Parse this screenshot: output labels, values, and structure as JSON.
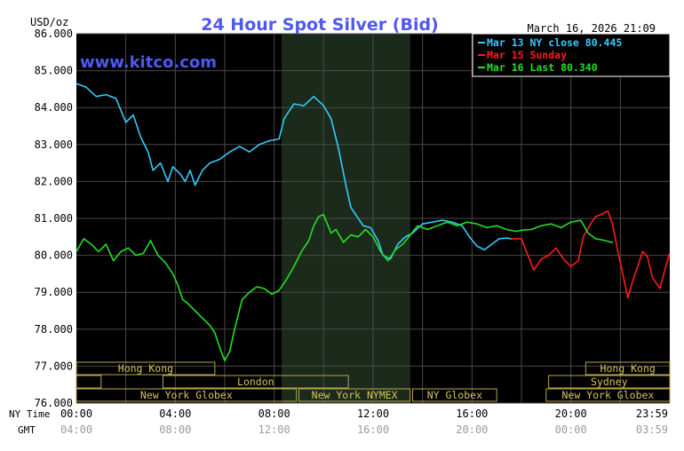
{
  "chart_data": {
    "type": "line",
    "title": "24 Hour Spot Silver (Bid)",
    "timestamp": "March 16, 2026 21:09",
    "watermark": "www.kitco.com",
    "ylabel": "USD/oz",
    "ylim": [
      76000,
      86000
    ],
    "y_ticks": [
      "86.000",
      "85.000",
      "84.000",
      "83.000",
      "82.000",
      "81.000",
      "80.000",
      "79.000",
      "78.000",
      "77.000",
      "76.000"
    ],
    "x_axis": {
      "ny_label": "NY Time",
      "gmt_label": "GMT",
      "ny_ticks": [
        "00:00",
        "04:00",
        "08:00",
        "12:00",
        "16:00",
        "20:00",
        "23:59"
      ],
      "gmt_ticks": [
        "04:00",
        "08:00",
        "12:00",
        "16:00",
        "20:00",
        "00:00",
        "03:59"
      ]
    },
    "legend_position": "top-right",
    "legend": [
      {
        "label": "Mar 13 NY close 80.445",
        "color": "#33ccff"
      },
      {
        "label": "Mar 15 Sunday",
        "color": "#ff1a1a"
      },
      {
        "label": "Mar 16 Last 80.340",
        "color": "#22e022"
      }
    ],
    "shaded_region_hours": [
      8.3,
      13.5
    ],
    "sessions": [
      {
        "label": "Hong Kong",
        "row": 0,
        "start": 0.0,
        "end": 5.6
      },
      {
        "label": "Hong Kong",
        "row": 0,
        "start": 20.6,
        "end": 24.0
      },
      {
        "label": "London",
        "row": 1,
        "start": 3.5,
        "end": 11.0
      },
      {
        "label": "Sydney",
        "row": 1,
        "start": 19.1,
        "end": 24.0
      },
      {
        "label": "New York Globex",
        "row": 2,
        "start": 0.0,
        "end": 8.9
      },
      {
        "label": "New York NYMEX",
        "row": 2,
        "start": 9.0,
        "end": 13.5
      },
      {
        "label": "NY Globex",
        "row": 2,
        "start": 13.6,
        "end": 17.0
      },
      {
        "label": "New York Globex",
        "row": 2,
        "start": 19.0,
        "end": 24.0
      }
    ],
    "session_open_stubs": [
      {
        "row": 1,
        "start": 0.0,
        "end": 1.0
      }
    ],
    "series": [
      {
        "name": "Mar 13 NY close 80.445",
        "color": "#33ccff",
        "points": [
          [
            0.0,
            84.65
          ],
          [
            0.4,
            84.55
          ],
          [
            0.8,
            84.3
          ],
          [
            1.2,
            84.35
          ],
          [
            1.6,
            84.25
          ],
          [
            2.0,
            83.6
          ],
          [
            2.3,
            83.8
          ],
          [
            2.6,
            83.2
          ],
          [
            2.9,
            82.8
          ],
          [
            3.1,
            82.3
          ],
          [
            3.4,
            82.5
          ],
          [
            3.7,
            82.0
          ],
          [
            3.9,
            82.4
          ],
          [
            4.2,
            82.2
          ],
          [
            4.4,
            82.0
          ],
          [
            4.6,
            82.3
          ],
          [
            4.8,
            81.9
          ],
          [
            5.1,
            82.3
          ],
          [
            5.4,
            82.5
          ],
          [
            5.8,
            82.6
          ],
          [
            6.2,
            82.8
          ],
          [
            6.6,
            82.95
          ],
          [
            7.0,
            82.8
          ],
          [
            7.4,
            83.0
          ],
          [
            7.8,
            83.1
          ],
          [
            8.2,
            83.15
          ],
          [
            8.4,
            83.7
          ],
          [
            8.8,
            84.1
          ],
          [
            9.2,
            84.05
          ],
          [
            9.6,
            84.3
          ],
          [
            10.0,
            84.05
          ],
          [
            10.3,
            83.7
          ],
          [
            10.6,
            82.9
          ],
          [
            10.9,
            81.9
          ],
          [
            11.1,
            81.3
          ],
          [
            11.3,
            81.1
          ],
          [
            11.6,
            80.8
          ],
          [
            11.9,
            80.75
          ],
          [
            12.2,
            80.4
          ],
          [
            12.4,
            80.0
          ],
          [
            12.7,
            79.9
          ],
          [
            13.0,
            80.3
          ],
          [
            13.3,
            80.5
          ],
          [
            13.6,
            80.6
          ],
          [
            14.0,
            80.85
          ],
          [
            14.4,
            80.9
          ],
          [
            14.8,
            80.95
          ],
          [
            15.2,
            80.9
          ],
          [
            15.6,
            80.8
          ],
          [
            15.9,
            80.5
          ],
          [
            16.2,
            80.25
          ],
          [
            16.5,
            80.15
          ],
          [
            16.8,
            80.3
          ],
          [
            17.1,
            80.45
          ],
          [
            17.4,
            80.47
          ],
          [
            17.6,
            80.445
          ]
        ]
      },
      {
        "name": "Mar 15 Sunday",
        "color": "#ff1a1a",
        "points": [
          [
            17.6,
            80.445
          ],
          [
            17.8,
            80.45
          ],
          [
            18.0,
            80.45
          ],
          [
            18.2,
            80.1
          ],
          [
            18.5,
            79.6
          ],
          [
            18.8,
            79.9
          ],
          [
            19.1,
            80.0
          ],
          [
            19.4,
            80.2
          ],
          [
            19.7,
            79.9
          ],
          [
            20.0,
            79.7
          ],
          [
            20.3,
            79.85
          ],
          [
            20.5,
            80.5
          ],
          [
            20.8,
            80.85
          ],
          [
            21.0,
            81.05
          ],
          [
            21.2,
            81.1
          ],
          [
            21.5,
            81.2
          ],
          [
            21.7,
            80.8
          ],
          [
            21.9,
            80.1
          ],
          [
            22.1,
            79.5
          ],
          [
            22.3,
            78.85
          ],
          [
            22.5,
            79.3
          ],
          [
            22.7,
            79.7
          ],
          [
            22.9,
            80.1
          ],
          [
            23.1,
            79.95
          ],
          [
            23.3,
            79.4
          ],
          [
            23.6,
            79.1
          ],
          [
            23.8,
            79.6
          ],
          [
            23.99,
            80.05
          ]
        ]
      },
      {
        "name": "Mar 16 Last 80.340",
        "color": "#22e022",
        "points": [
          [
            0.0,
            80.1
          ],
          [
            0.3,
            80.45
          ],
          [
            0.6,
            80.3
          ],
          [
            0.9,
            80.1
          ],
          [
            1.2,
            80.3
          ],
          [
            1.5,
            79.85
          ],
          [
            1.8,
            80.1
          ],
          [
            2.1,
            80.2
          ],
          [
            2.4,
            80.0
          ],
          [
            2.7,
            80.05
          ],
          [
            3.0,
            80.4
          ],
          [
            3.3,
            80.0
          ],
          [
            3.6,
            79.8
          ],
          [
            3.9,
            79.5
          ],
          [
            4.1,
            79.2
          ],
          [
            4.3,
            78.8
          ],
          [
            4.5,
            78.7
          ],
          [
            4.8,
            78.5
          ],
          [
            5.1,
            78.3
          ],
          [
            5.4,
            78.1
          ],
          [
            5.6,
            77.9
          ],
          [
            5.8,
            77.5
          ],
          [
            6.0,
            77.15
          ],
          [
            6.2,
            77.4
          ],
          [
            6.4,
            78.0
          ],
          [
            6.7,
            78.8
          ],
          [
            7.0,
            79.0
          ],
          [
            7.3,
            79.15
          ],
          [
            7.6,
            79.1
          ],
          [
            7.9,
            78.95
          ],
          [
            8.2,
            79.05
          ],
          [
            8.5,
            79.35
          ],
          [
            8.8,
            79.7
          ],
          [
            9.1,
            80.1
          ],
          [
            9.4,
            80.4
          ],
          [
            9.6,
            80.8
          ],
          [
            9.8,
            81.05
          ],
          [
            10.0,
            81.1
          ],
          [
            10.3,
            80.6
          ],
          [
            10.5,
            80.7
          ],
          [
            10.8,
            80.35
          ],
          [
            11.1,
            80.55
          ],
          [
            11.4,
            80.5
          ],
          [
            11.7,
            80.7
          ],
          [
            12.0,
            80.5
          ],
          [
            12.3,
            80.1
          ],
          [
            12.6,
            79.85
          ],
          [
            12.9,
            80.15
          ],
          [
            13.2,
            80.3
          ],
          [
            13.5,
            80.55
          ],
          [
            13.8,
            80.8
          ],
          [
            14.2,
            80.7
          ],
          [
            14.6,
            80.8
          ],
          [
            15.0,
            80.9
          ],
          [
            15.4,
            80.8
          ],
          [
            15.8,
            80.9
          ],
          [
            16.2,
            80.85
          ],
          [
            16.6,
            80.75
          ],
          [
            17.0,
            80.8
          ],
          [
            17.4,
            80.7
          ],
          [
            17.8,
            80.65
          ],
          [
            18.0,
            80.68
          ],
          [
            18.4,
            80.7
          ],
          [
            18.8,
            80.8
          ],
          [
            19.2,
            80.85
          ],
          [
            19.6,
            80.75
          ],
          [
            20.0,
            80.9
          ],
          [
            20.4,
            80.95
          ],
          [
            20.7,
            80.6
          ],
          [
            21.0,
            80.45
          ],
          [
            21.4,
            80.4
          ],
          [
            21.7,
            80.34
          ]
        ]
      }
    ]
  }
}
